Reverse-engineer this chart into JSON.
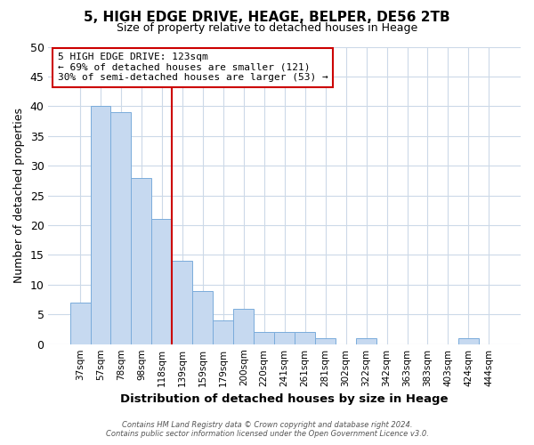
{
  "title": "5, HIGH EDGE DRIVE, HEAGE, BELPER, DE56 2TB",
  "subtitle": "Size of property relative to detached houses in Heage",
  "xlabel": "Distribution of detached houses by size in Heage",
  "ylabel": "Number of detached properties",
  "bar_labels": [
    "37sqm",
    "57sqm",
    "78sqm",
    "98sqm",
    "118sqm",
    "139sqm",
    "159sqm",
    "179sqm",
    "200sqm",
    "220sqm",
    "241sqm",
    "261sqm",
    "281sqm",
    "302sqm",
    "322sqm",
    "342sqm",
    "363sqm",
    "383sqm",
    "403sqm",
    "424sqm",
    "444sqm"
  ],
  "bar_values": [
    7,
    40,
    39,
    28,
    21,
    14,
    9,
    4,
    6,
    2,
    2,
    2,
    1,
    0,
    1,
    0,
    0,
    0,
    0,
    1,
    0
  ],
  "bar_color": "#c6d9f0",
  "bar_edge_color": "#7aacdb",
  "bar_width": 1.0,
  "red_line_index": 4,
  "red_line_color": "#cc0000",
  "annotation_text": "5 HIGH EDGE DRIVE: 123sqm\n← 69% of detached houses are smaller (121)\n30% of semi-detached houses are larger (53) →",
  "annotation_box_edge_color": "#cc0000",
  "ylim": [
    0,
    50
  ],
  "yticks": [
    0,
    5,
    10,
    15,
    20,
    25,
    30,
    35,
    40,
    45,
    50
  ],
  "footer_line1": "Contains HM Land Registry data © Crown copyright and database right 2024.",
  "footer_line2": "Contains public sector information licensed under the Open Government Licence v3.0.",
  "bg_color": "#ffffff",
  "grid_color": "#ccd9e8"
}
